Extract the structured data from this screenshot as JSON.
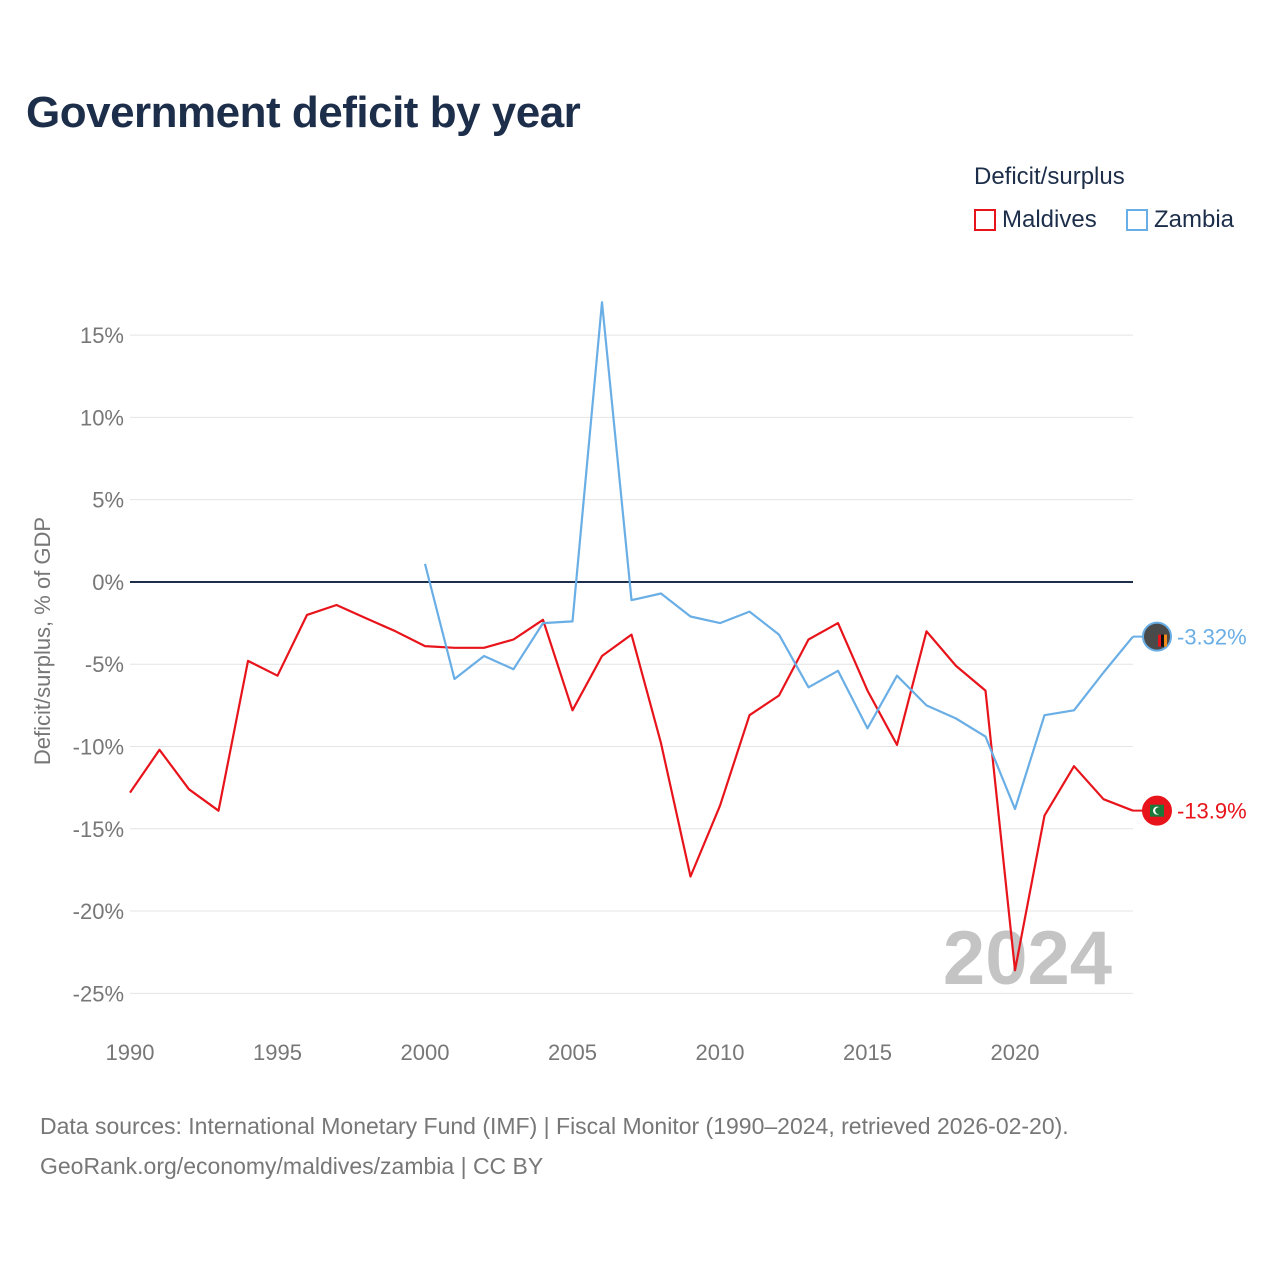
{
  "title": "Government deficit by year",
  "legend": {
    "title": "Deficit/surplus",
    "items": [
      {
        "label": "Maldives",
        "color": "#e8141b"
      },
      {
        "label": "Zambia",
        "color": "#6aaee6"
      }
    ]
  },
  "sources": {
    "line1": "Data sources: International Monetary Fund (IMF) | Fiscal Monitor (1990–2024, retrieved 2026-02-20).",
    "line2": "GeoRank.org/economy/maldives/zambia | CC BY"
  },
  "chart_data": {
    "type": "line",
    "title": "Government deficit by year",
    "ylabel": "Deficit/surplus, % of GDP",
    "xlabel": "",
    "xlim": [
      1990,
      2024
    ],
    "ylim": [
      -26.5,
      17.5
    ],
    "yticks": [
      15,
      10,
      5,
      0,
      -5,
      -10,
      -15,
      -20,
      -25
    ],
    "ytick_labels": [
      "15%",
      "10%",
      "5%",
      "0%",
      "-5%",
      "-10%",
      "-15%",
      "-20%",
      "-25%"
    ],
    "xticks": [
      1990,
      1995,
      2000,
      2005,
      2010,
      2015,
      2020
    ],
    "xtick_labels": [
      "1990",
      "1995",
      "2000",
      "2005",
      "2010",
      "2015",
      "2020"
    ],
    "current_year": "2024",
    "series": [
      {
        "name": "Maldives",
        "color": "#e8141b",
        "end_label": "-13.9%",
        "x": [
          1990,
          1991,
          1992,
          1993,
          1994,
          1995,
          1996,
          1997,
          1998,
          1999,
          2000,
          2001,
          2002,
          2003,
          2004,
          2005,
          2006,
          2007,
          2008,
          2009,
          2010,
          2011,
          2012,
          2013,
          2014,
          2015,
          2016,
          2017,
          2018,
          2019,
          2020,
          2021,
          2022,
          2023,
          2024
        ],
        "values": [
          -12.8,
          -10.2,
          -12.6,
          -13.9,
          -4.8,
          -5.7,
          -2.0,
          -1.4,
          -2.2,
          -3.0,
          -3.9,
          -4.0,
          -4.0,
          -3.5,
          -2.3,
          -7.8,
          -4.5,
          -3.2,
          -9.8,
          -17.9,
          -13.6,
          -8.1,
          -6.9,
          -3.5,
          -2.5,
          -6.6,
          -9.9,
          -3.0,
          -5.1,
          -6.6,
          -23.6,
          -14.2,
          -11.2,
          -13.2,
          -13.9
        ]
      },
      {
        "name": "Zambia",
        "color": "#6aaee6",
        "end_label": "-3.32%",
        "x": [
          2000,
          2001,
          2002,
          2003,
          2004,
          2005,
          2006,
          2007,
          2008,
          2009,
          2010,
          2011,
          2012,
          2013,
          2014,
          2015,
          2016,
          2017,
          2018,
          2019,
          2020,
          2021,
          2022,
          2023,
          2024
        ],
        "values": [
          1.1,
          -5.9,
          -4.5,
          -5.3,
          -2.5,
          -2.4,
          17.0,
          -1.1,
          -0.7,
          -2.1,
          -2.5,
          -1.8,
          -3.2,
          -6.4,
          -5.4,
          -8.9,
          -5.7,
          -7.5,
          -8.3,
          -9.4,
          -13.8,
          -8.1,
          -7.8,
          -5.5,
          -3.32
        ]
      }
    ]
  }
}
